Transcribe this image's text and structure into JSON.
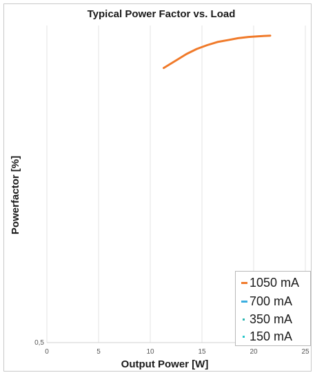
{
  "chart_data": {
    "type": "line",
    "title": "Typical Power Factor vs. Load",
    "xlabel": "Output Power [W]",
    "ylabel": "Powerfactor [%]",
    "xlim": [
      0,
      25
    ],
    "ylim": [
      0.5,
      1.0
    ],
    "x_ticks": [
      "0",
      "5",
      "10",
      "15",
      "20",
      "25"
    ],
    "y_ticks": [
      "0,5"
    ],
    "grid": "vertical",
    "legend_position": "bottom-right",
    "series": [
      {
        "name": "1050 mA",
        "color": "#f07a2a",
        "x": [
          11.3,
          12.5,
          13.5,
          14.5,
          15.5,
          16.5,
          17.5,
          18.5,
          19.5,
          20.5,
          21.6
        ],
        "y": [
          0.933,
          0.945,
          0.955,
          0.963,
          0.969,
          0.974,
          0.977,
          0.98,
          0.982,
          0.983,
          0.984
        ]
      },
      {
        "name": "700 mA",
        "color": "#3aaee0",
        "x": [],
        "y": []
      },
      {
        "name": "350 mA",
        "color": "#2bb5b0",
        "x": [],
        "y": []
      },
      {
        "name": "150 mA",
        "color": "#26c6c9",
        "x": [],
        "y": []
      }
    ]
  }
}
